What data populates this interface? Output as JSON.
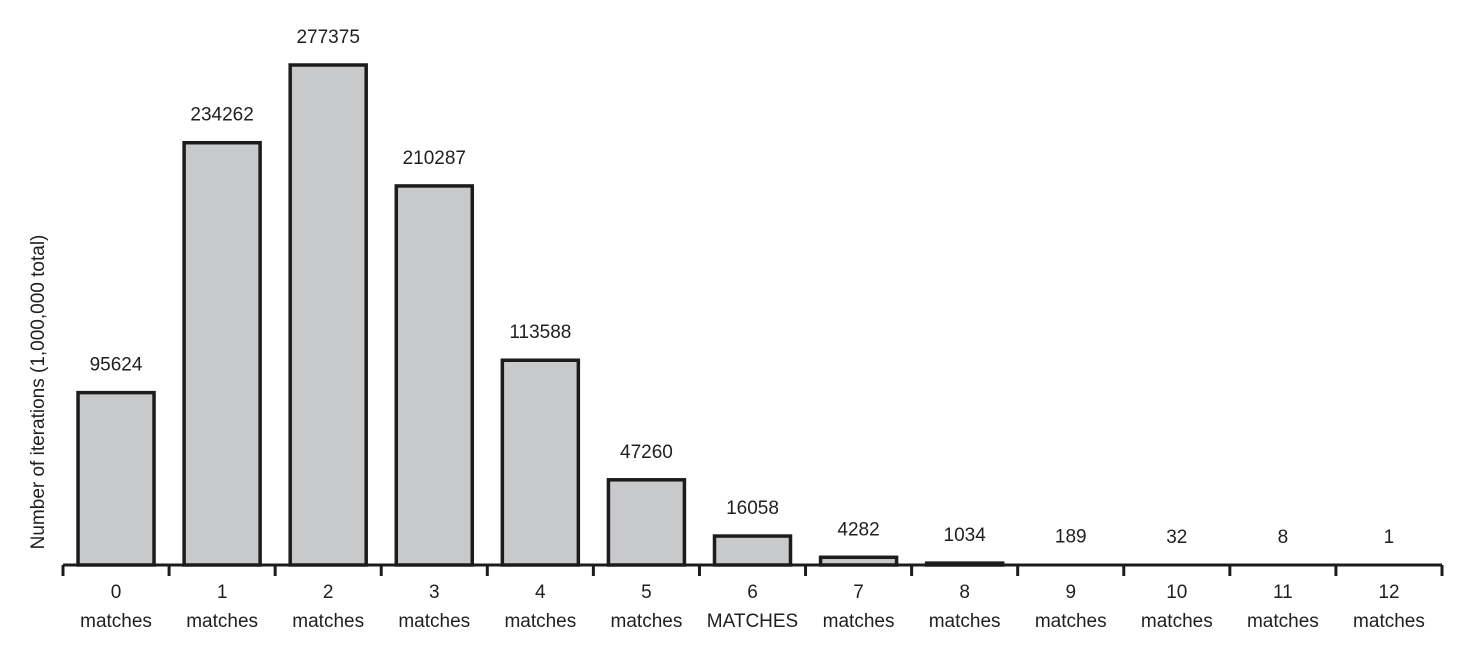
{
  "chart_data": {
    "type": "bar",
    "title": "",
    "ylabel": "Number of iterations (1,000,000 total)",
    "xlabel": "",
    "categories": [
      [
        "0",
        "matches"
      ],
      [
        "1",
        "matches"
      ],
      [
        "2",
        "matches"
      ],
      [
        "3",
        "matches"
      ],
      [
        "4",
        "matches"
      ],
      [
        "5",
        "matches"
      ],
      [
        "6",
        "MATCHES"
      ],
      [
        "7",
        "matches"
      ],
      [
        "8",
        "matches"
      ],
      [
        "9",
        "matches"
      ],
      [
        "10",
        "matches"
      ],
      [
        "11",
        "matches"
      ],
      [
        "12",
        "matches"
      ]
    ],
    "values": [
      95624,
      234262,
      277375,
      210287,
      113588,
      47260,
      16058,
      4282,
      1034,
      189,
      32,
      8,
      1
    ],
    "value_labels": [
      "95624",
      "234262",
      "277375",
      "210287",
      "113588",
      "47260",
      "16058",
      "4282",
      "1034",
      "189",
      "32",
      "8",
      "1"
    ],
    "ylim": [
      0,
      300000
    ],
    "grid": false,
    "legend": "none",
    "colors": {
      "bar_fill": "#c8c9ca",
      "bar_stroke": "#1c1c1c",
      "axis": "#1c1c1c",
      "text": "#1f1f1f"
    }
  }
}
